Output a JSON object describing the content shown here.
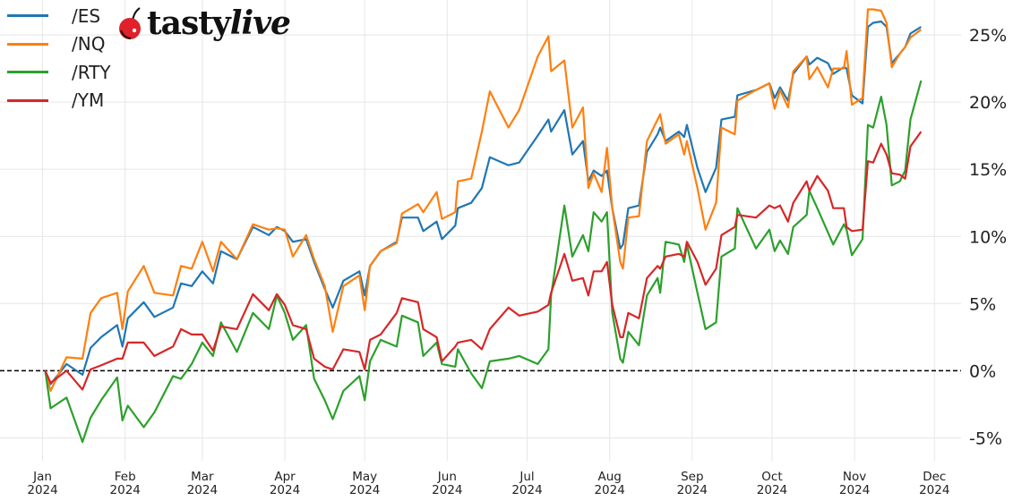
{
  "chart_data": {
    "type": "line",
    "title": "",
    "xlabel": "",
    "ylabel": "",
    "xlim": [
      "2023-12-16",
      "2024-12-11"
    ],
    "ylim": [
      -6.7,
      27.6
    ],
    "grid": true,
    "legend_position": "top-left",
    "reference_line": {
      "y": 0,
      "style": "dashed",
      "color": "#000000"
    },
    "x_ticks": [
      {
        "date": "2024-01-01",
        "label": [
          "Jan",
          "2024"
        ]
      },
      {
        "date": "2024-02-01",
        "label": [
          "Feb",
          "2024"
        ]
      },
      {
        "date": "2024-03-01",
        "label": [
          "Mar",
          "2024"
        ]
      },
      {
        "date": "2024-04-01",
        "label": [
          "Apr",
          "2024"
        ]
      },
      {
        "date": "2024-05-01",
        "label": [
          "May",
          "2024"
        ]
      },
      {
        "date": "2024-06-01",
        "label": [
          "Jun",
          "2024"
        ]
      },
      {
        "date": "2024-07-01",
        "label": [
          "Jul",
          "2024"
        ]
      },
      {
        "date": "2024-08-01",
        "label": [
          "Aug",
          "2024"
        ]
      },
      {
        "date": "2024-09-01",
        "label": [
          "Sep",
          "2024"
        ]
      },
      {
        "date": "2024-10-01",
        "label": [
          "Oct",
          "2024"
        ]
      },
      {
        "date": "2024-11-01",
        "label": [
          "Nov",
          "2024"
        ]
      },
      {
        "date": "2024-12-01",
        "label": [
          "Dec",
          "2024"
        ]
      }
    ],
    "y_ticks": [
      {
        "value": -5,
        "label": "-5%"
      },
      {
        "value": 0,
        "label": "0%"
      },
      {
        "value": 5,
        "label": "5%"
      },
      {
        "value": 10,
        "label": "10%"
      },
      {
        "value": 15,
        "label": "15%"
      },
      {
        "value": 20,
        "label": "20%"
      },
      {
        "value": 25,
        "label": "25%"
      }
    ],
    "x": [
      "2024-01-02",
      "2024-01-04",
      "2024-01-10",
      "2024-01-16",
      "2024-01-19",
      "2024-01-23",
      "2024-01-29",
      "2024-01-31",
      "2024-02-02",
      "2024-02-08",
      "2024-02-12",
      "2024-02-19",
      "2024-02-22",
      "2024-02-26",
      "2024-03-01",
      "2024-03-05",
      "2024-03-08",
      "2024-03-14",
      "2024-03-20",
      "2024-03-26",
      "2024-03-29",
      "2024-04-01",
      "2024-04-04",
      "2024-04-09",
      "2024-04-12",
      "2024-04-16",
      "2024-04-19",
      "2024-04-23",
      "2024-04-29",
      "2024-05-01",
      "2024-05-03",
      "2024-05-07",
      "2024-05-13",
      "2024-05-15",
      "2024-05-21",
      "2024-05-23",
      "2024-05-28",
      "2024-05-30",
      "2024-06-04",
      "2024-06-05",
      "2024-06-10",
      "2024-06-14",
      "2024-06-17",
      "2024-06-24",
      "2024-06-28",
      "2024-07-05",
      "2024-07-09",
      "2024-07-10",
      "2024-07-15",
      "2024-07-18",
      "2024-07-22",
      "2024-07-24",
      "2024-07-26",
      "2024-07-29",
      "2024-07-31",
      "2024-08-02",
      "2024-08-05",
      "2024-08-06",
      "2024-08-08",
      "2024-08-12",
      "2024-08-15",
      "2024-08-19",
      "2024-08-20",
      "2024-08-22",
      "2024-08-27",
      "2024-08-29",
      "2024-08-30",
      "2024-09-03",
      "2024-09-06",
      "2024-09-10",
      "2024-09-12",
      "2024-09-17",
      "2024-09-18",
      "2024-09-25",
      "2024-09-30",
      "2024-10-02",
      "2024-10-04",
      "2024-10-07",
      "2024-10-09",
      "2024-10-14",
      "2024-10-15",
      "2024-10-18",
      "2024-10-22",
      "2024-10-24",
      "2024-10-28",
      "2024-10-29",
      "2024-10-31",
      "2024-11-04",
      "2024-11-06",
      "2024-11-08",
      "2024-11-11",
      "2024-11-13",
      "2024-11-15",
      "2024-11-18",
      "2024-11-20",
      "2024-11-22",
      "2024-11-26"
    ],
    "series": [
      {
        "name": "/ES",
        "color": "#1f77b4",
        "values": [
          0,
          -1.0,
          0.5,
          -0.3,
          1.7,
          2.5,
          3.4,
          1.8,
          3.9,
          5.1,
          4.0,
          4.7,
          6.5,
          6.3,
          7.4,
          6.5,
          8.9,
          8.3,
          10.7,
          10.1,
          10.7,
          10.4,
          9.6,
          9.8,
          8.1,
          6.1,
          4.7,
          6.7,
          7.4,
          5.6,
          7.8,
          8.9,
          9.6,
          11.4,
          11.4,
          10.4,
          11.1,
          9.8,
          10.8,
          12.1,
          12.5,
          13.6,
          15.9,
          15.3,
          15.5,
          17.5,
          18.7,
          17.8,
          19.4,
          16.1,
          17.1,
          14.1,
          14.9,
          14.5,
          14.9,
          12.1,
          9.1,
          9.4,
          12.1,
          12.3,
          16.3,
          17.6,
          18.1,
          17.1,
          17.8,
          17.4,
          18.3,
          15.1,
          13.3,
          15.1,
          18.7,
          18.9,
          20.5,
          20.9,
          21.4,
          20.3,
          21.1,
          20.1,
          22.1,
          23.4,
          22.8,
          23.3,
          22.9,
          22.1,
          22.6,
          22.5,
          20.5,
          19.9,
          25.6,
          25.9,
          26.0,
          25.6,
          22.9,
          23.6,
          24.1,
          25.1,
          25.6
        ]
      },
      {
        "name": "/NQ",
        "color": "#ff7f0e",
        "values": [
          0,
          -1.5,
          1.0,
          0.9,
          4.3,
          5.4,
          5.8,
          3.1,
          5.9,
          7.8,
          5.8,
          5.6,
          7.8,
          7.6,
          9.6,
          7.4,
          9.6,
          8.3,
          10.9,
          10.5,
          10.6,
          10.5,
          8.5,
          10.1,
          8.3,
          6.3,
          2.9,
          6.3,
          7.1,
          4.5,
          7.8,
          8.9,
          9.5,
          11.7,
          12.4,
          11.8,
          13.3,
          11.3,
          11.8,
          14.1,
          14.3,
          17.8,
          20.8,
          18.1,
          19.4,
          23.4,
          24.9,
          22.3,
          23.1,
          18.1,
          19.6,
          13.6,
          14.7,
          13.3,
          16.6,
          12.1,
          8.1,
          7.6,
          11.4,
          11.5,
          17.1,
          18.7,
          19.1,
          16.9,
          17.6,
          16.1,
          17.1,
          13.6,
          10.5,
          12.5,
          18.1,
          17.6,
          20.1,
          20.9,
          21.4,
          19.5,
          20.9,
          19.6,
          22.3,
          23.4,
          21.7,
          22.6,
          21.1,
          22.5,
          22.5,
          23.8,
          19.8,
          20.3,
          26.9,
          26.9,
          26.8,
          25.9,
          22.6,
          23.6,
          24.1,
          24.8,
          25.4
        ]
      },
      {
        "name": "/RTY",
        "color": "#2ca02c",
        "values": [
          0,
          -2.8,
          -2.0,
          -5.3,
          -3.5,
          -2.2,
          -0.5,
          -3.7,
          -2.6,
          -4.2,
          -3.1,
          -0.4,
          -0.6,
          0.5,
          2.1,
          1.1,
          3.6,
          1.4,
          4.3,
          3.1,
          5.6,
          4.3,
          2.3,
          3.4,
          -0.6,
          -2.2,
          -3.6,
          -1.5,
          -0.4,
          -2.2,
          0.7,
          2.3,
          1.8,
          4.1,
          3.6,
          1.1,
          2.1,
          0.5,
          0.3,
          1.6,
          -0.2,
          -1.3,
          0.7,
          0.9,
          1.1,
          0.5,
          1.6,
          5.6,
          12.3,
          8.5,
          10.1,
          8.9,
          11.8,
          11.1,
          11.8,
          4.3,
          0.9,
          0.6,
          2.9,
          1.9,
          5.6,
          6.9,
          5.8,
          9.6,
          9.4,
          8.1,
          9.4,
          5.8,
          3.1,
          3.6,
          8.5,
          9.1,
          12.1,
          9.1,
          10.5,
          8.9,
          9.7,
          8.7,
          10.7,
          11.6,
          13.4,
          12.1,
          10.3,
          9.4,
          10.9,
          10.5,
          8.6,
          9.8,
          18.3,
          18.1,
          20.4,
          18.3,
          13.8,
          14.1,
          14.9,
          18.7,
          21.6
        ]
      },
      {
        "name": "/YM",
        "color": "#d62728",
        "values": [
          0,
          -0.9,
          0.0,
          -1.4,
          0.1,
          0.4,
          0.9,
          0.9,
          2.1,
          2.1,
          1.1,
          1.8,
          3.1,
          2.7,
          2.7,
          1.5,
          3.3,
          3.1,
          5.7,
          4.5,
          5.7,
          4.9,
          3.4,
          3.1,
          0.9,
          0.3,
          0.1,
          1.6,
          1.4,
          0.1,
          2.3,
          2.7,
          4.3,
          5.4,
          5.1,
          3.1,
          2.5,
          0.7,
          1.8,
          2.1,
          2.3,
          1.6,
          3.1,
          4.7,
          4.1,
          4.4,
          4.9,
          5.8,
          8.7,
          6.7,
          6.9,
          5.6,
          7.4,
          7.4,
          8.1,
          4.9,
          2.5,
          2.5,
          4.3,
          3.9,
          6.9,
          7.8,
          7.6,
          8.5,
          8.7,
          8.5,
          9.6,
          8.1,
          6.4,
          7.6,
          10.1,
          10.7,
          11.6,
          11.4,
          12.3,
          12.1,
          12.3,
          11.1,
          12.5,
          14.1,
          13.4,
          14.5,
          13.4,
          12.1,
          12.1,
          10.7,
          10.4,
          10.5,
          15.6,
          15.5,
          16.9,
          16.1,
          14.7,
          14.6,
          14.3,
          16.7,
          17.8
        ]
      }
    ]
  },
  "logo": {
    "text_regular": "tasty",
    "text_italic": "live",
    "cherry_color": "#e0202a"
  }
}
